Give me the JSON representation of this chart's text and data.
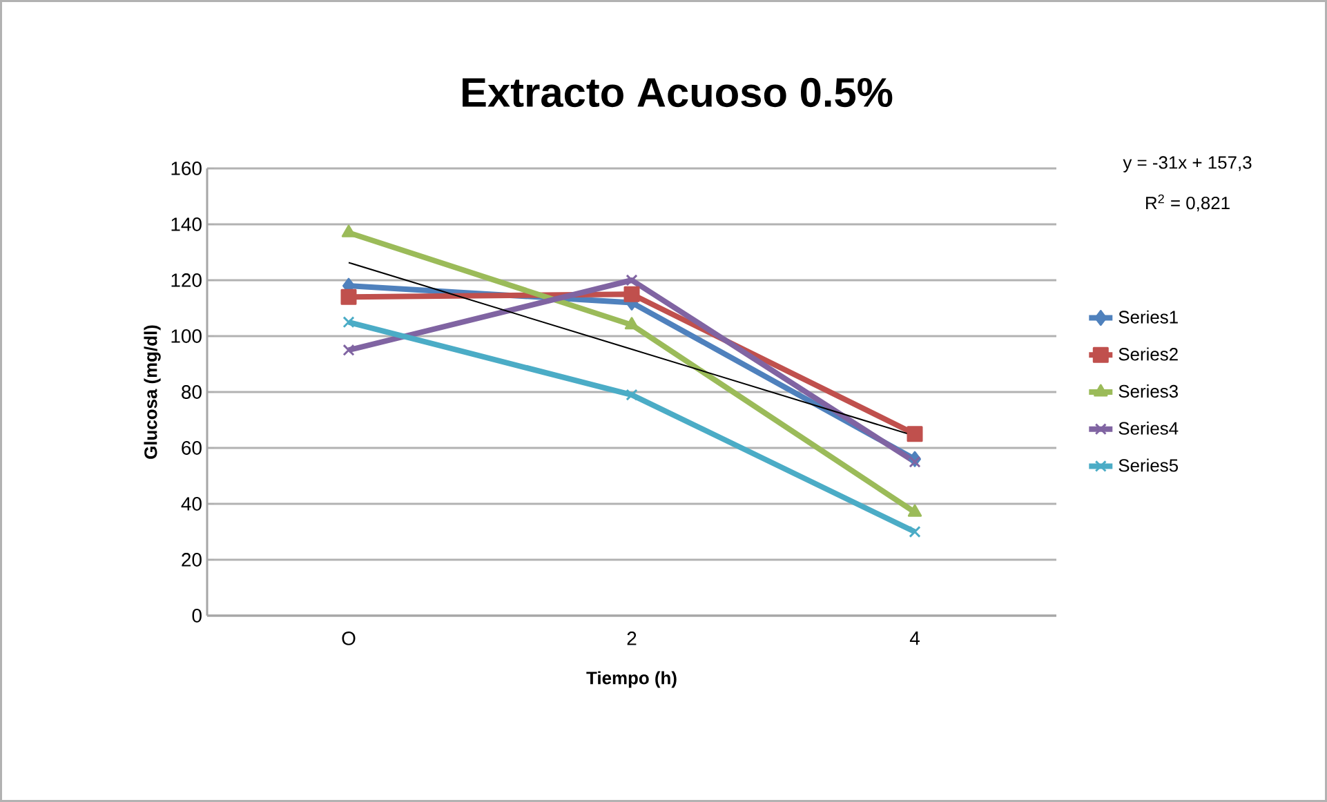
{
  "chart_data": {
    "type": "line",
    "title": "Extracto  Acuoso 0.5%",
    "xlabel": "Tiempo (h)",
    "ylabel": "Glucosa (mg/dl)",
    "categories": [
      "O",
      "2",
      "4"
    ],
    "series": [
      {
        "name": "Series1",
        "color": "#4f81bd",
        "marker": "diamond",
        "values": [
          118,
          112,
          56
        ]
      },
      {
        "name": "Series2",
        "color": "#c0504d",
        "marker": "square",
        "values": [
          114,
          115,
          65
        ]
      },
      {
        "name": "Series3",
        "color": "#9bbb59",
        "marker": "triangle",
        "values": [
          137,
          104,
          37
        ]
      },
      {
        "name": "Series4",
        "color": "#8064a2",
        "marker": "cross",
        "values": [
          95,
          120,
          55
        ]
      },
      {
        "name": "Series5",
        "color": "#4bacc6",
        "marker": "cross",
        "values": [
          105,
          79,
          30
        ]
      },
      {
        "type": "line",
        "color": "#000000",
        "marker": "none",
        "values": [
          126.3,
          95.3,
          64.3
        ]
      }
    ],
    "ylim": [
      0,
      160
    ],
    "yticks": [
      0,
      20,
      40,
      60,
      80,
      100,
      120,
      140,
      160
    ],
    "grid": "y",
    "legend": "right",
    "annotations": [
      "y = -31x + 157,3",
      "R$^{2}$ = 0,821"
    ]
  }
}
